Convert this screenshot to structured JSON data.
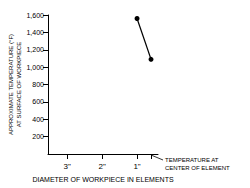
{
  "chart_data": {
    "type": "line",
    "x_label": "DIAMETER OF WORKPIECE IN ELEMENTS",
    "y_label": "APPROXIMATE TEMPERATURE (°F)\nAT SURFACE OF WORKPIECE",
    "x": [
      1,
      0.6
    ],
    "values": [
      1560,
      1090
    ],
    "color": "#000000",
    "marker": "circle",
    "xlim": [
      0.4,
      3.55
    ],
    "xticks": [
      {
        "value": 3,
        "label": "3\""
      },
      {
        "value": 2,
        "label": "2\""
      },
      {
        "value": 1,
        "label": "1\""
      }
    ],
    "ylim": [
      0,
      1600
    ],
    "yticks": [
      200,
      400,
      600,
      800,
      1000,
      1200,
      1400,
      1600
    ],
    "grid": false,
    "annotations": [
      {
        "text": "TEMPERATURE AT\nCENTER OF ELEMENT",
        "x": 0.6
      }
    ]
  }
}
